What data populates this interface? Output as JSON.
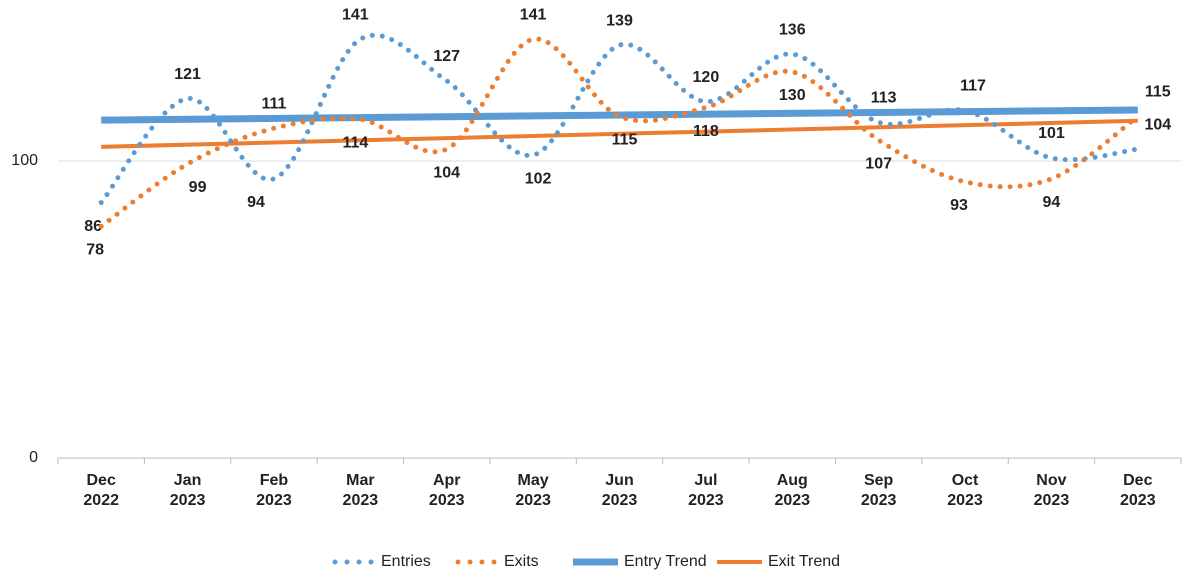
{
  "chart_data": {
    "type": "line",
    "categories": [
      "Dec 2022",
      "Jan 2023",
      "Feb 2023",
      "Mar 2023",
      "Apr 2023",
      "May 2023",
      "Jun 2023",
      "Jul 2023",
      "Aug 2023",
      "Sep 2023",
      "Oct 2023",
      "Nov 2023",
      "Dec 2023"
    ],
    "series": [
      {
        "name": "Entries",
        "color": "#5b9bd5",
        "values": [
          86,
          121,
          94,
          141,
          127,
          102,
          139,
          120,
          136,
          113,
          117,
          101,
          104
        ]
      },
      {
        "name": "Exits",
        "color": "#ed7d31",
        "values": [
          78,
          99,
          111,
          114,
          104,
          141,
          115,
          118,
          130,
          107,
          93,
          94,
          115
        ]
      }
    ],
    "trendlines": [
      {
        "name": "Entry Trend",
        "color": "#5b9bd5",
        "of": "Entries"
      },
      {
        "name": "Exit Trend",
        "color": "#ed7d31",
        "of": "Exits"
      }
    ],
    "ylim": [
      0,
      150
    ],
    "yticks": [
      0,
      100
    ],
    "grid": true,
    "legend": "bottom"
  }
}
